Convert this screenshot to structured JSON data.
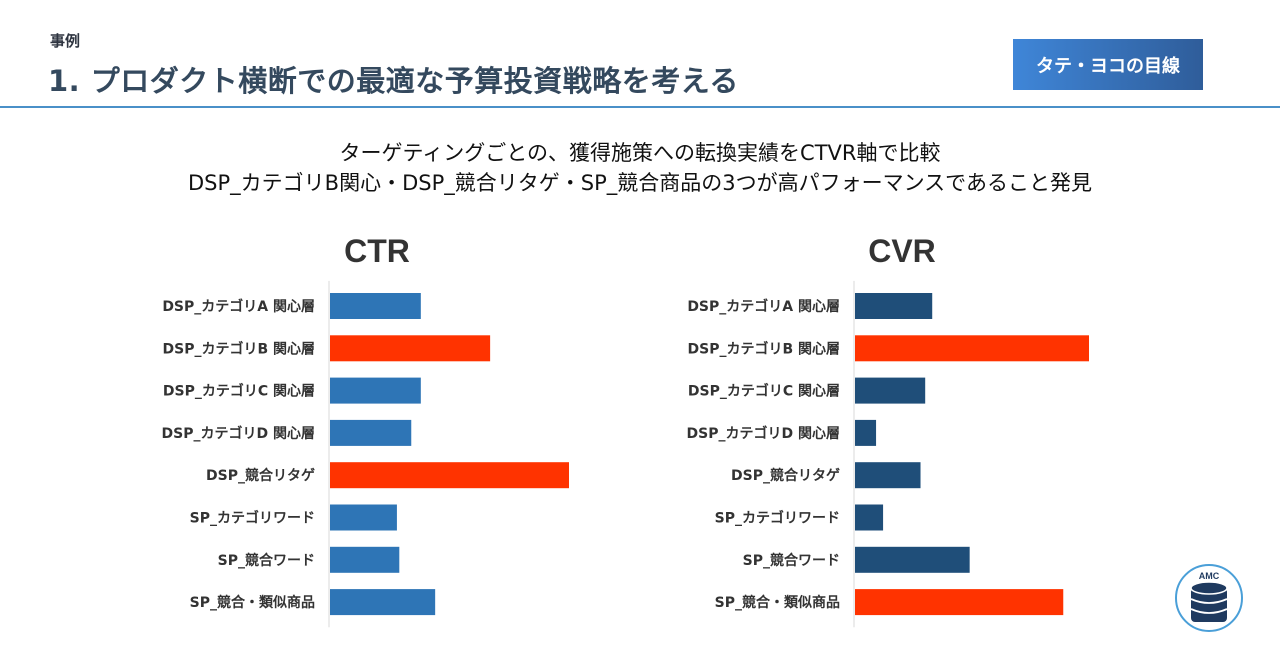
{
  "header": {
    "section_label": "事例",
    "title": "1. プロダクト横断での最適な予算投資戦略を考える",
    "badge": "タテ・ヨコの目線"
  },
  "subtitle": {
    "line1": "ターゲティングごとの、獲得施策への転換実績をCTVR軸で比較",
    "line2": "DSP_カテゴリB関心・DSP_競合リタゲ・SP_競合商品の3つが高パフォーマンスであること発見"
  },
  "logo": {
    "text": "AMC",
    "icon": "database-icon"
  },
  "colors": {
    "ctr_bar": "#2e75b6",
    "cvr_bar": "#1f4e79",
    "highlight": "#ff3300",
    "axis": "#d9d9d9",
    "label": "#333333"
  },
  "chart_data": [
    {
      "type": "bar",
      "orientation": "horizontal",
      "title": "CTR",
      "categories": [
        "DSP_カテゴリA 関心層",
        "DSP_カテゴリB 関心層",
        "DSP_カテゴリC 関心層",
        "DSP_カテゴリD 関心層",
        "DSP_競合リタゲ",
        "SP_カテゴリワード",
        "SP_競合ワード",
        "SP_競合・類似商品"
      ],
      "values": [
        38,
        67,
        38,
        34,
        100,
        28,
        29,
        44
      ],
      "highlighted": [
        false,
        true,
        false,
        false,
        true,
        false,
        false,
        false
      ],
      "xlim": [
        0,
        100
      ],
      "grid": false,
      "xaxis_labels": false
    },
    {
      "type": "bar",
      "orientation": "horizontal",
      "title": "CVR",
      "categories": [
        "DSP_カテゴリA 関心層",
        "DSP_カテゴリB 関心層",
        "DSP_カテゴリC 関心層",
        "DSP_カテゴリD 関心層",
        "DSP_競合リタゲ",
        "SP_カテゴリワード",
        "SP_競合ワード",
        "SP_競合・類似商品"
      ],
      "values": [
        33,
        100,
        30,
        9,
        28,
        12,
        49,
        89
      ],
      "highlighted": [
        false,
        true,
        false,
        false,
        false,
        false,
        false,
        true
      ],
      "xlim": [
        0,
        100
      ],
      "grid": false,
      "xaxis_labels": false
    }
  ]
}
